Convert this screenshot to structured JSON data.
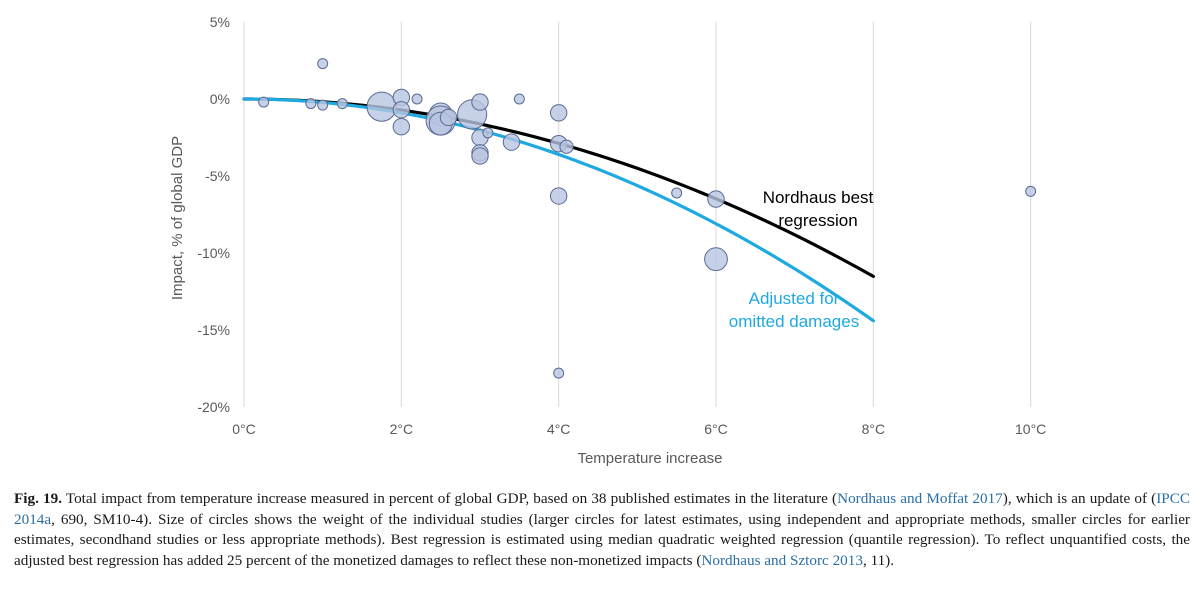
{
  "chart_data": {
    "type": "scatter",
    "xlabel": "Temperature increase",
    "ylabel": "Impact, % of global GDP",
    "xlim": [
      0,
      10.5
    ],
    "ylim": [
      -20,
      5
    ],
    "x_ticks": [
      0,
      2,
      4,
      6,
      8,
      10
    ],
    "x_tick_labels": [
      "0°C",
      "2°C",
      "4°C",
      "6°C",
      "8°C",
      "10°C"
    ],
    "y_ticks": [
      5,
      0,
      -5,
      -10,
      -15,
      -20
    ],
    "y_tick_labels": [
      "5%",
      "0%",
      "-5%",
      "-10%",
      "-15%",
      "-20%"
    ],
    "grid": "vertical",
    "points": [
      {
        "x": 0.25,
        "y": -0.2,
        "size": 1
      },
      {
        "x": 1.0,
        "y": 2.3,
        "size": 1
      },
      {
        "x": 0.85,
        "y": -0.3,
        "size": 1
      },
      {
        "x": 1.0,
        "y": -0.4,
        "size": 1
      },
      {
        "x": 1.25,
        "y": -0.3,
        "size": 1
      },
      {
        "x": 1.75,
        "y": -0.5,
        "size": 4
      },
      {
        "x": 2.0,
        "y": 0.1,
        "size": 2
      },
      {
        "x": 2.0,
        "y": -0.7,
        "size": 2
      },
      {
        "x": 2.0,
        "y": -1.8,
        "size": 2
      },
      {
        "x": 2.2,
        "y": 0.0,
        "size": 1
      },
      {
        "x": 2.5,
        "y": -1.0,
        "size": 3
      },
      {
        "x": 2.5,
        "y": -1.4,
        "size": 4
      },
      {
        "x": 2.5,
        "y": -1.6,
        "size": 3
      },
      {
        "x": 2.6,
        "y": -1.2,
        "size": 2
      },
      {
        "x": 2.9,
        "y": -1.0,
        "size": 4
      },
      {
        "x": 3.0,
        "y": -0.2,
        "size": 2
      },
      {
        "x": 3.0,
        "y": -2.5,
        "size": 2
      },
      {
        "x": 3.0,
        "y": -3.5,
        "size": 2
      },
      {
        "x": 3.0,
        "y": -3.7,
        "size": 2
      },
      {
        "x": 3.1,
        "y": -2.2,
        "size": 1
      },
      {
        "x": 3.4,
        "y": -2.8,
        "size": 2
      },
      {
        "x": 3.5,
        "y": 0.0,
        "size": 1
      },
      {
        "x": 4.0,
        "y": -0.9,
        "size": 2
      },
      {
        "x": 4.0,
        "y": -2.9,
        "size": 2
      },
      {
        "x": 4.1,
        "y": -3.1,
        "size": 1.5
      },
      {
        "x": 4.0,
        "y": -6.3,
        "size": 2
      },
      {
        "x": 4.0,
        "y": -17.8,
        "size": 1
      },
      {
        "x": 5.5,
        "y": -6.1,
        "size": 1
      },
      {
        "x": 6.0,
        "y": -6.5,
        "size": 2
      },
      {
        "x": 6.0,
        "y": -10.4,
        "size": 3
      },
      {
        "x": 10.0,
        "y": -6.0,
        "size": 1
      }
    ],
    "curves": [
      {
        "name": "Nordhaus best regression",
        "annotation": [
          "Nordhaus best",
          "regression"
        ],
        "color": "#000000",
        "a": -0.18,
        "b": 0.0,
        "x_range": [
          0,
          8
        ]
      },
      {
        "name": "Adjusted for omitted damages",
        "annotation": [
          "Adjusted for",
          "omitted damages"
        ],
        "color": "#1ea9e1",
        "a": -0.225,
        "b": 0.0,
        "x_range": [
          0,
          8
        ]
      }
    ],
    "point_style": {
      "fill": "#b8c4e0",
      "stroke": "#5a6a94"
    }
  },
  "caption": {
    "label": "Fig. 19.",
    "parts": [
      {
        "t": " Total impact from temperature increase measured in percent of global GDP, based on 38 published estimates in the literature ("
      },
      {
        "t": "Nordhaus and Moffat 2017",
        "ref": true
      },
      {
        "t": "), which is an update of ("
      },
      {
        "t": "IPCC 2014a",
        "ref": true
      },
      {
        "t": ", 690, SM10-4). Size of circles shows the weight of the individual studies (larger circles for latest estimates, using independent and appropriate methods, smaller circles for earlier estimates, secondhand studies or less appropriate methods). Best regression is estimated using median quadratic weighted regression (quantile regression). To reflect unquantified costs, the adjusted best regression has added 25 percent of the monetized damages to reflect these non-monetized impacts ("
      },
      {
        "t": "Nordhaus and Sztorc 2013",
        "ref": true
      },
      {
        "t": ", 11)."
      }
    ]
  }
}
